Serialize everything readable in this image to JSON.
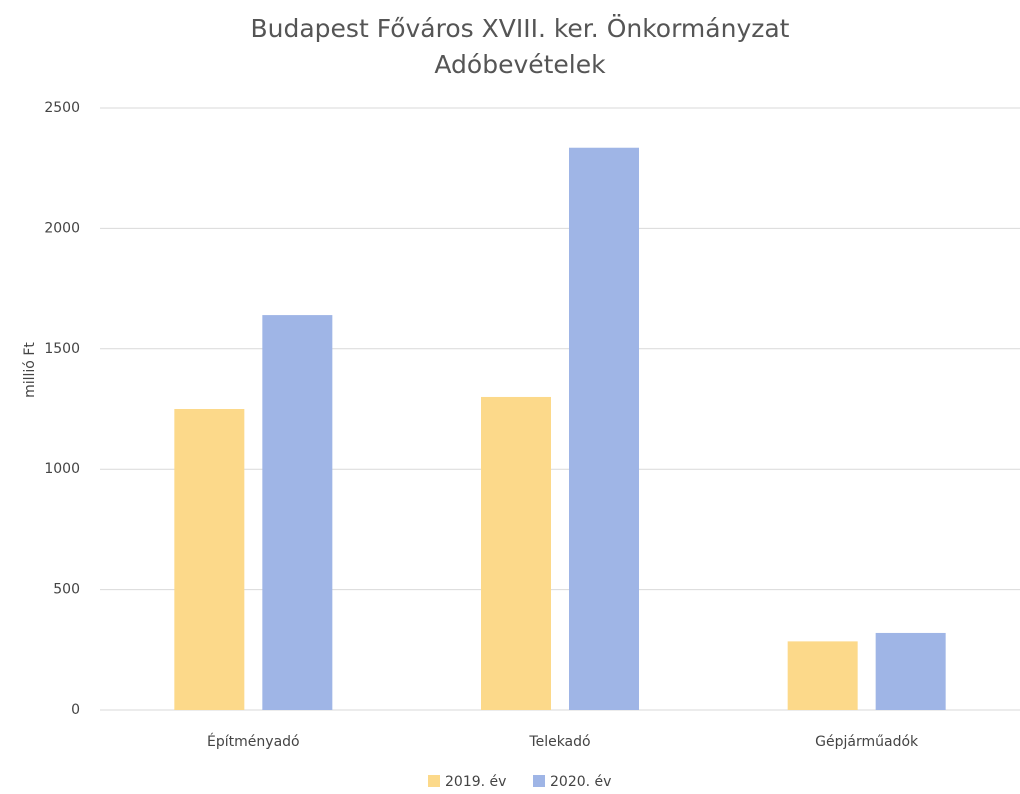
{
  "chart_data": {
    "type": "bar",
    "title": [
      "Budapest Főváros XVIII. ker. Önkormányzat",
      "Adóbevételek"
    ],
    "y_label": "millió Ft",
    "categories": [
      "Építményadó",
      "Telekadó",
      "Gépjárműadók"
    ],
    "series": [
      {
        "name": "2019. év",
        "color": "#fcd98a",
        "values": [
          1250,
          1300,
          285
        ]
      },
      {
        "name": "2020. év",
        "color": "#9fb5e6",
        "values": [
          1640,
          2335,
          320
        ]
      }
    ],
    "ylim": [
      0,
      2500
    ],
    "yticks": [
      0,
      500,
      1000,
      1500,
      2000,
      2500
    ],
    "grid": true,
    "legend": "bottom"
  }
}
